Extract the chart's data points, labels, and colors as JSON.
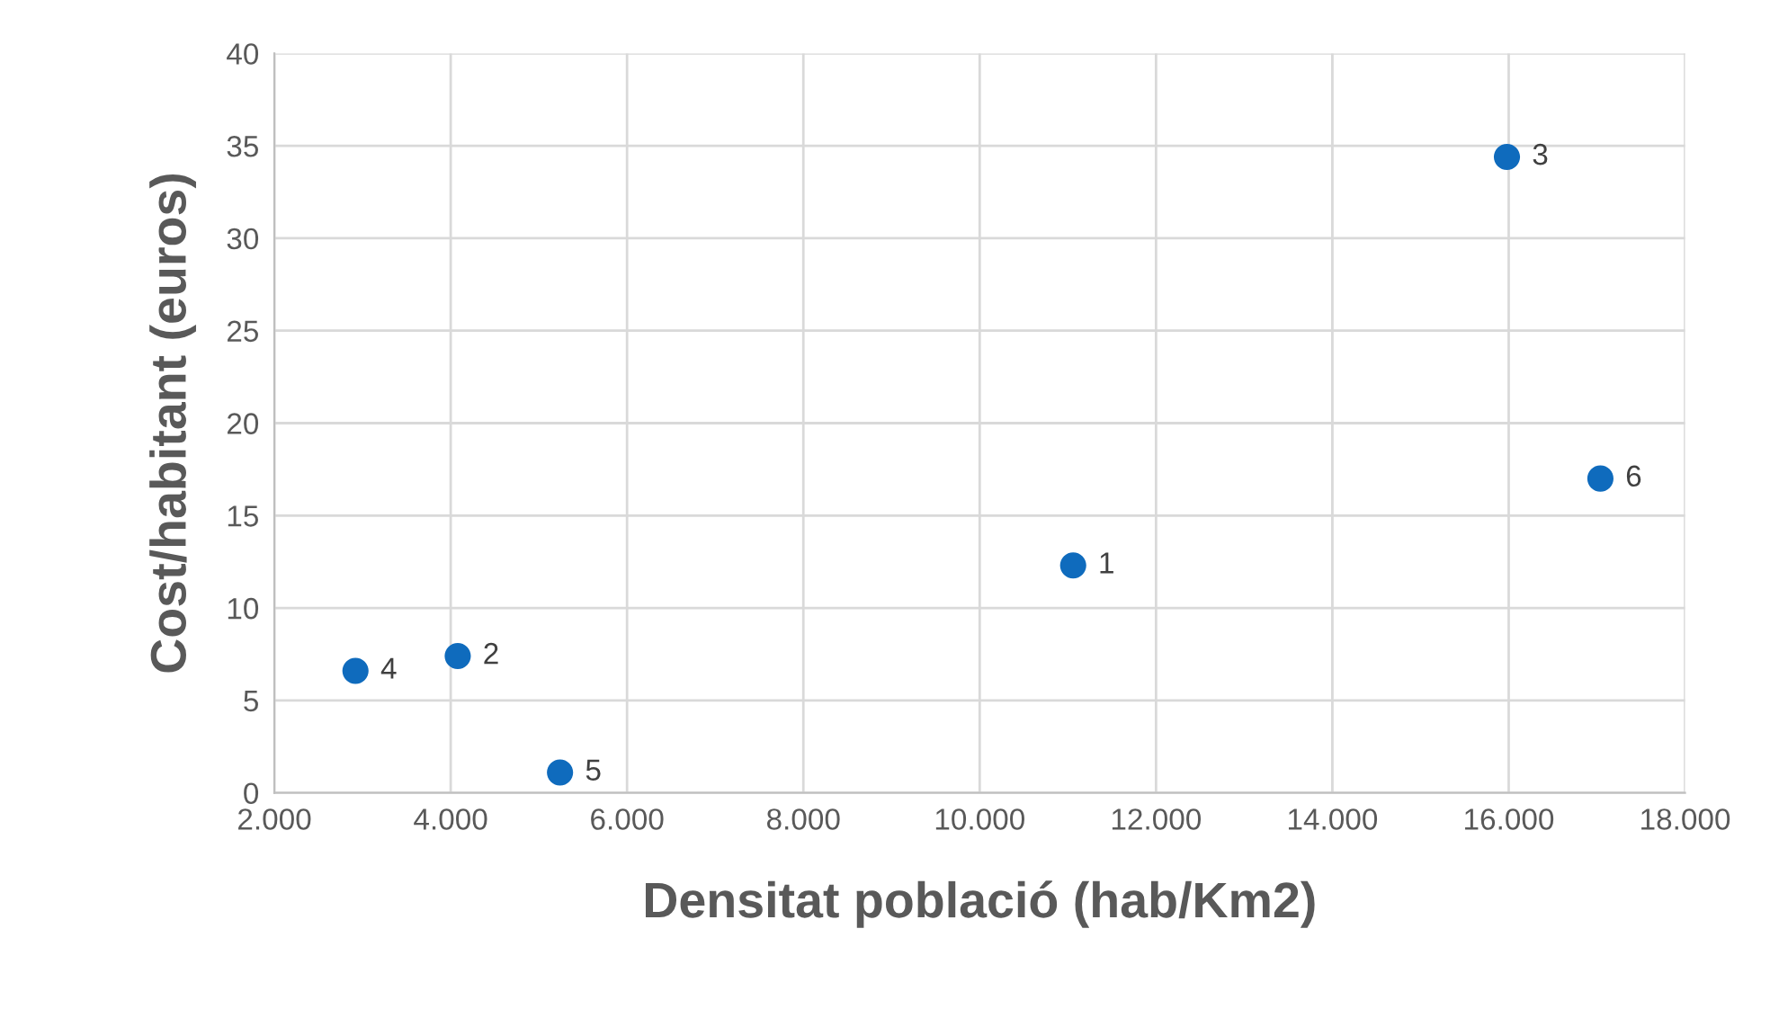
{
  "chart_data": {
    "type": "scatter",
    "xlabel": "Densitat població (hab/Km2)",
    "ylabel": "Cost/habitant (euros)",
    "x": [
      11060,
      4080,
      15980,
      2920,
      5240,
      17040
    ],
    "series": [
      {
        "color": "#0f6bbd",
        "values": [
          12.3,
          7.4,
          34.4,
          6.6,
          1.1,
          17.0
        ]
      }
    ],
    "annotations": [
      {
        "text": "1",
        "x": 11060,
        "y": 12.3
      },
      {
        "text": "2",
        "x": 4080,
        "y": 7.4
      },
      {
        "text": "3",
        "x": 15980,
        "y": 34.4
      },
      {
        "text": "4",
        "x": 2920,
        "y": 6.6
      },
      {
        "text": "5",
        "x": 5240,
        "y": 1.1
      },
      {
        "text": "6",
        "x": 17040,
        "y": 17.0
      }
    ],
    "xlim": [
      2000,
      18000
    ],
    "xticks": [
      {
        "value": 2000,
        "label": "2.000"
      },
      {
        "value": 4000,
        "label": "4.000"
      },
      {
        "value": 6000,
        "label": "6.000"
      },
      {
        "value": 8000,
        "label": "8.000"
      },
      {
        "value": 10000,
        "label": "10.000"
      },
      {
        "value": 12000,
        "label": "12.000"
      },
      {
        "value": 14000,
        "label": "14.000"
      },
      {
        "value": 16000,
        "label": "16.000"
      },
      {
        "value": 18000,
        "label": "18.000"
      }
    ],
    "ylim": [
      0,
      40
    ],
    "yticks": [
      0,
      5,
      10,
      15,
      20,
      25,
      30,
      35,
      40
    ],
    "grid": true,
    "legend": false,
    "marker": "circle"
  }
}
